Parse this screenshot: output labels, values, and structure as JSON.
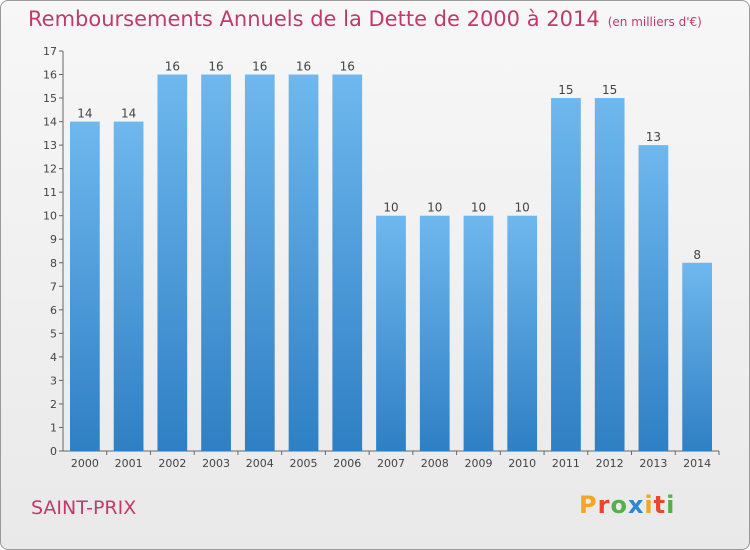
{
  "header": {
    "title": "Remboursements Annuels de la Dette de 2000 à 2014",
    "unit": "(en milliers d'€)"
  },
  "footer": {
    "city": "SAINT-PRIX",
    "logo_text": "Proxiti"
  },
  "colors": {
    "title": "#c03a6b",
    "bar_top": "#6fb8ee",
    "bar_bottom": "#2f7fc4",
    "logo_letters": [
      "#f2a623",
      "#e9452f",
      "#55b04c",
      "#2f86d1",
      "#f2a623",
      "#e9452f",
      "#55b04c"
    ]
  },
  "chart_data": {
    "type": "bar",
    "categories": [
      "2000",
      "2001",
      "2002",
      "2003",
      "2004",
      "2005",
      "2006",
      "2007",
      "2008",
      "2009",
      "2010",
      "2011",
      "2012",
      "2013",
      "2014"
    ],
    "values": [
      14,
      14,
      16,
      16,
      16,
      16,
      16,
      10,
      10,
      10,
      10,
      15,
      15,
      13,
      8
    ],
    "title": "Remboursements Annuels de la Dette de 2000 à 2014",
    "xlabel": "",
    "ylabel": "",
    "ylim": [
      0,
      17
    ],
    "yticks": [
      0,
      1,
      2,
      3,
      4,
      5,
      6,
      7,
      8,
      9,
      10,
      11,
      12,
      13,
      14,
      15,
      16,
      17
    ],
    "grid": false,
    "data_labels": true
  }
}
